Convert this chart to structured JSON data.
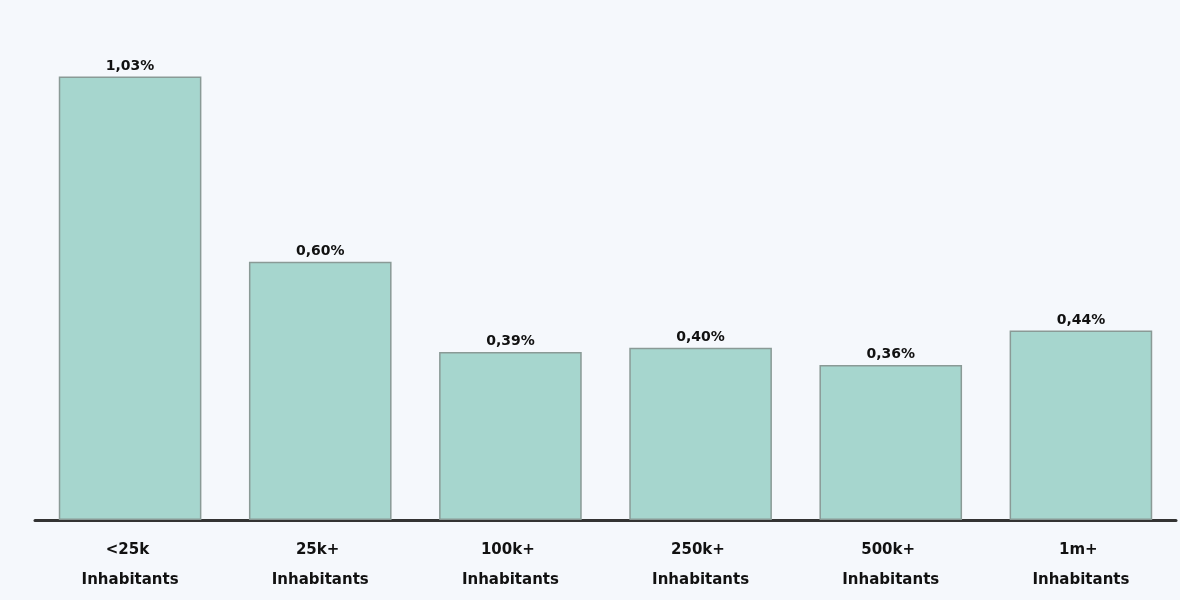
{
  "chart_data": {
    "type": "bar",
    "categories": [
      "<25k Inhabitants",
      "25k+ Inhabitants",
      "100k+ Inhabitants",
      "250k+ Inhabitants",
      "500k+ Inhabitants",
      "1m+ Inhabitants"
    ],
    "values": [
      1.03,
      0.6,
      0.39,
      0.4,
      0.36,
      0.44
    ],
    "value_labels": [
      "1,03%",
      "0,60%",
      "0,39%",
      "0,40%",
      "0,36%",
      "0,44%"
    ],
    "color": "#a6d6ce"
  }
}
